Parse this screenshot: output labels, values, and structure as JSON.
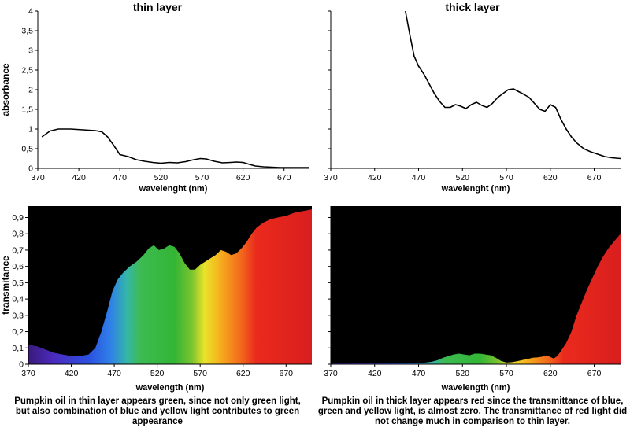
{
  "figure": {
    "caption_left": "Pumpkin oil in thin layer appears green, since not only green light, but also combination of blue and yellow light contributes to green appearance",
    "caption_right": "Pumpkin oil in thick layer appears red since the transmittance of blue, green and yellow light, is almost zero. The transmittance of red light did not change much in comparison to thin layer."
  },
  "colors": {
    "curve_line": "#000000",
    "plot_background_dark": "#000000",
    "axis": "#000000"
  },
  "spectrum_gradient": [
    {
      "nm": 370,
      "color": "#3a1a7a"
    },
    {
      "nm": 400,
      "color": "#4a2bbf"
    },
    {
      "nm": 440,
      "color": "#2b50e0"
    },
    {
      "nm": 465,
      "color": "#2f7fe8"
    },
    {
      "nm": 485,
      "color": "#35b6a8"
    },
    {
      "nm": 500,
      "color": "#3dbb52"
    },
    {
      "nm": 540,
      "color": "#33b535"
    },
    {
      "nm": 560,
      "color": "#79c32f"
    },
    {
      "nm": 575,
      "color": "#e8e32a"
    },
    {
      "nm": 590,
      "color": "#f5b91f"
    },
    {
      "nm": 605,
      "color": "#f58c1b"
    },
    {
      "nm": 620,
      "color": "#f2611c"
    },
    {
      "nm": 635,
      "color": "#ea2a1d"
    },
    {
      "nm": 700,
      "color": "#d81e1e"
    }
  ],
  "chart_data": [
    {
      "id": "thin-layer-absorbance",
      "type": "line",
      "title": "thin layer",
      "xlabel": "wavelenght (nm)",
      "ylabel": "absorbance",
      "xlim": [
        370,
        700
      ],
      "ylim": [
        0,
        4
      ],
      "xticks": [
        370,
        420,
        470,
        520,
        570,
        620,
        670
      ],
      "yticks": [
        0,
        0.5,
        1,
        1.5,
        2,
        2.5,
        3,
        3.5,
        4
      ],
      "ytick_labels": [
        "0",
        "0,5",
        "1",
        "1,5",
        "2",
        "2,5",
        "3",
        "3,5",
        "4"
      ],
      "x": [
        375,
        385,
        395,
        410,
        425,
        440,
        448,
        455,
        462,
        470,
        480,
        490,
        500,
        510,
        520,
        530,
        540,
        550,
        560,
        568,
        575,
        585,
        595,
        605,
        612,
        620,
        628,
        635,
        645,
        655,
        665,
        675,
        690,
        700
      ],
      "y": [
        0.8,
        0.95,
        1.0,
        1.0,
        0.98,
        0.96,
        0.93,
        0.8,
        0.6,
        0.35,
        0.3,
        0.22,
        0.18,
        0.15,
        0.13,
        0.15,
        0.14,
        0.17,
        0.22,
        0.25,
        0.24,
        0.18,
        0.14,
        0.15,
        0.16,
        0.15,
        0.1,
        0.06,
        0.04,
        0.03,
        0.02,
        0.02,
        0.02,
        0.02
      ]
    },
    {
      "id": "thick-layer-absorbance",
      "type": "line",
      "title": "thick layer",
      "xlabel": "wavelenght (nm)",
      "ylabel": "",
      "xlim": [
        370,
        700
      ],
      "ylim": [
        0,
        4
      ],
      "xticks": [
        370,
        420,
        470,
        520,
        570,
        620,
        670
      ],
      "yticks": [
        0,
        0.5,
        1,
        1.5,
        2,
        2.5,
        3,
        3.5,
        4
      ],
      "ytick_labels": [],
      "x": [
        455,
        460,
        465,
        470,
        476,
        482,
        488,
        494,
        500,
        506,
        512,
        518,
        524,
        530,
        536,
        542,
        548,
        554,
        560,
        566,
        572,
        578,
        584,
        590,
        596,
        602,
        608,
        614,
        620,
        626,
        632,
        638,
        644,
        650,
        658,
        666,
        674,
        682,
        690,
        700
      ],
      "y": [
        4.0,
        3.4,
        2.85,
        2.6,
        2.4,
        2.15,
        1.9,
        1.7,
        1.55,
        1.55,
        1.62,
        1.58,
        1.52,
        1.62,
        1.68,
        1.6,
        1.55,
        1.65,
        1.8,
        1.9,
        2.0,
        2.02,
        1.95,
        1.88,
        1.8,
        1.65,
        1.5,
        1.45,
        1.62,
        1.55,
        1.25,
        1.0,
        0.8,
        0.65,
        0.5,
        0.42,
        0.36,
        0.3,
        0.27,
        0.25
      ]
    },
    {
      "id": "thin-layer-transmittance",
      "type": "area",
      "title": "",
      "xlabel": "wavelength (nm)",
      "ylabel": "transmitance",
      "xlim": [
        370,
        700
      ],
      "ylim": [
        0,
        0.97
      ],
      "xticks": [
        370,
        420,
        470,
        520,
        570,
        620,
        670
      ],
      "yticks": [
        0,
        0.1,
        0.2,
        0.3,
        0.4,
        0.5,
        0.6,
        0.7,
        0.8,
        0.9
      ],
      "ytick_labels": [
        "0",
        "0,1",
        "0,2",
        "0,3",
        "0,4",
        "0,5",
        "0,6",
        "0,7",
        "0,8",
        "0,9"
      ],
      "x": [
        370,
        380,
        390,
        400,
        410,
        420,
        430,
        440,
        448,
        455,
        462,
        468,
        474,
        480,
        488,
        496,
        504,
        510,
        516,
        522,
        528,
        534,
        540,
        546,
        552,
        558,
        564,
        570,
        576,
        582,
        588,
        594,
        600,
        606,
        612,
        618,
        624,
        630,
        636,
        644,
        652,
        660,
        670,
        680,
        690,
        700
      ],
      "y": [
        0.12,
        0.11,
        0.09,
        0.07,
        0.06,
        0.05,
        0.05,
        0.06,
        0.1,
        0.2,
        0.33,
        0.45,
        0.52,
        0.56,
        0.6,
        0.63,
        0.67,
        0.71,
        0.73,
        0.7,
        0.71,
        0.73,
        0.72,
        0.68,
        0.62,
        0.58,
        0.58,
        0.61,
        0.63,
        0.65,
        0.67,
        0.7,
        0.69,
        0.67,
        0.68,
        0.71,
        0.75,
        0.8,
        0.84,
        0.87,
        0.89,
        0.9,
        0.91,
        0.93,
        0.94,
        0.95
      ]
    },
    {
      "id": "thick-layer-transmittance",
      "type": "area",
      "title": "",
      "xlabel": "wavelength (nm)",
      "ylabel": "",
      "xlim": [
        370,
        700
      ],
      "ylim": [
        0,
        0.97
      ],
      "xticks": [
        370,
        420,
        470,
        520,
        570,
        620,
        670
      ],
      "yticks": [
        0,
        0.1,
        0.2,
        0.3,
        0.4,
        0.5,
        0.6,
        0.7,
        0.8,
        0.9
      ],
      "ytick_labels": [],
      "x": [
        370,
        400,
        430,
        460,
        475,
        485,
        492,
        498,
        504,
        510,
        516,
        522,
        528,
        534,
        540,
        546,
        552,
        558,
        564,
        570,
        576,
        582,
        588,
        594,
        600,
        606,
        612,
        616,
        620,
        624,
        628,
        632,
        638,
        644,
        650,
        656,
        662,
        668,
        674,
        680,
        686,
        692,
        700
      ],
      "y": [
        0.005,
        0.005,
        0.005,
        0.006,
        0.008,
        0.015,
        0.025,
        0.04,
        0.05,
        0.06,
        0.065,
        0.06,
        0.055,
        0.065,
        0.065,
        0.06,
        0.055,
        0.04,
        0.02,
        0.01,
        0.012,
        0.018,
        0.025,
        0.032,
        0.04,
        0.042,
        0.048,
        0.055,
        0.045,
        0.035,
        0.05,
        0.08,
        0.13,
        0.2,
        0.3,
        0.38,
        0.46,
        0.53,
        0.6,
        0.66,
        0.71,
        0.75,
        0.8
      ]
    }
  ]
}
